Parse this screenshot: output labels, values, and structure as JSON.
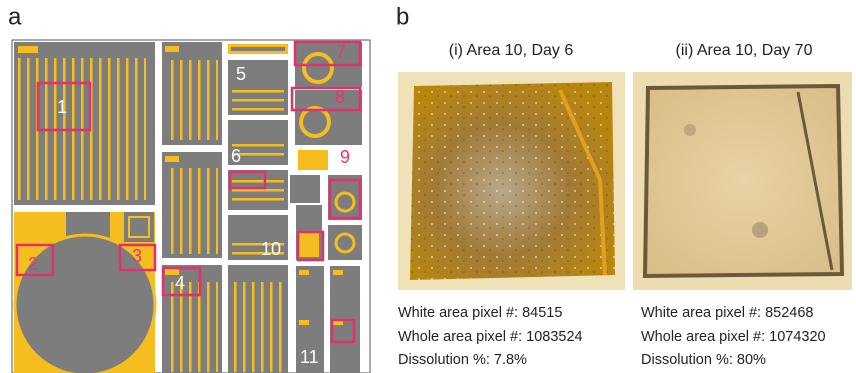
{
  "panel_a": {
    "label": "a",
    "regions": [
      "1",
      "2",
      "3",
      "4",
      "5",
      "6",
      "7",
      "8",
      "9",
      "10",
      "11"
    ]
  },
  "panel_b": {
    "label": "b",
    "images": [
      {
        "caption": "(i)  Area 10, Day 6",
        "lines": [
          "White area pixel #: 84515",
          "Whole area pixel #: 1083524",
          "Dissolution %:  7.8%"
        ]
      },
      {
        "caption": "(ii)  Area 10, Day 70",
        "lines": [
          "White area pixel #: 852468",
          "Whole area pixel #: 1074320",
          "Dissolution %:  80%"
        ]
      }
    ]
  }
}
